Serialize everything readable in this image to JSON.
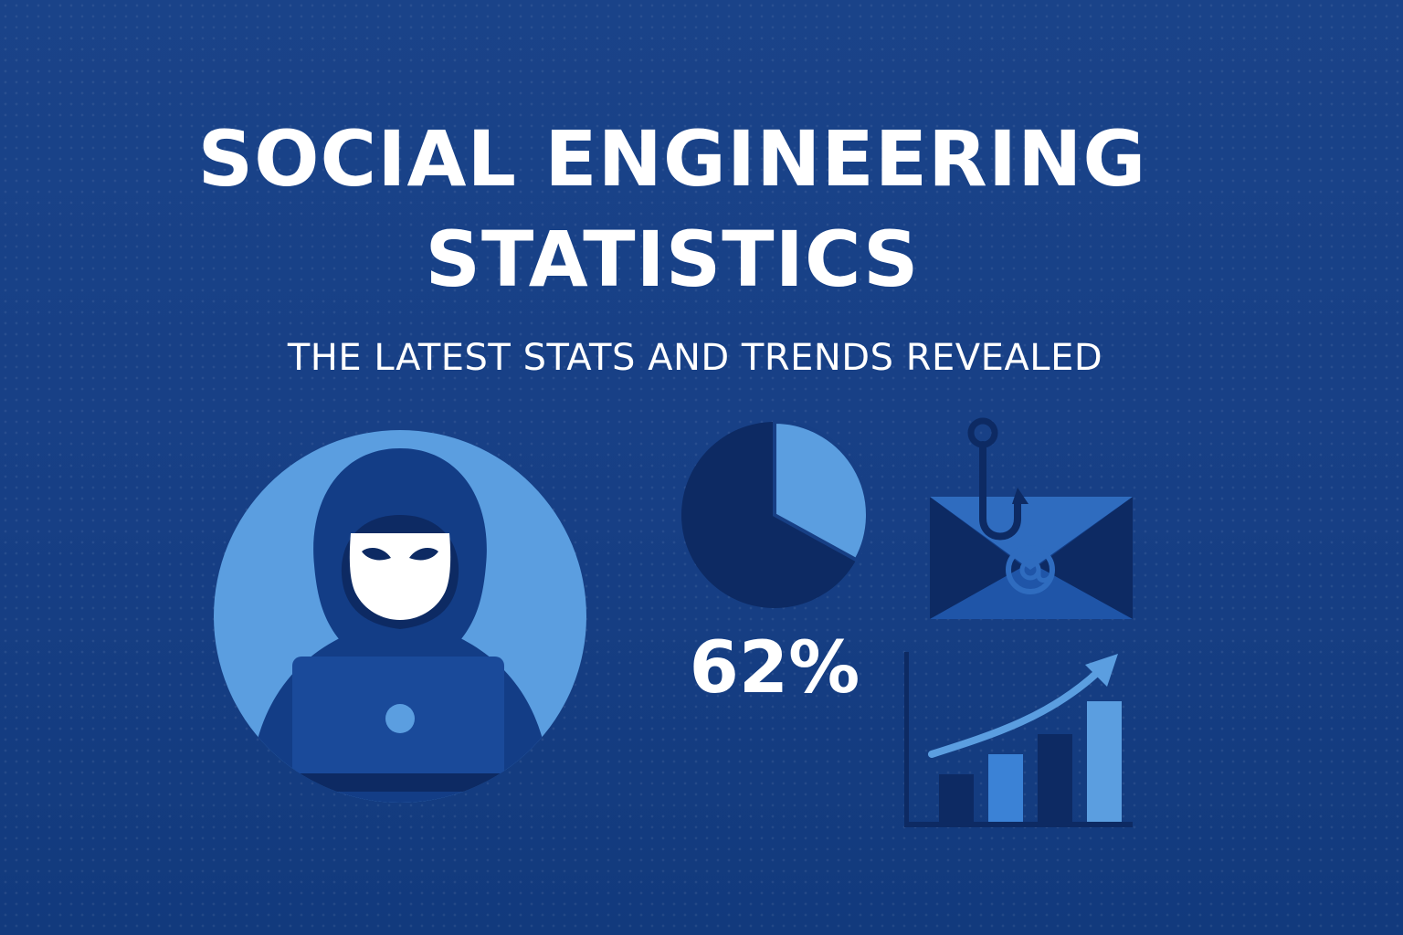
{
  "header": {
    "title_line_1": "SOCIAL ENGINEERING",
    "title_line_2": "STATISTICS",
    "subtitle": "THE LATEST STATS AND TRENDS REVEALED"
  },
  "stat": {
    "value": "62%",
    "pie_highlight_fraction": 0.33
  },
  "icons": [
    "hooded-hacker-icon",
    "laptop-icon",
    "pie-chart-icon",
    "phishing-email-icon",
    "fish-hook-icon",
    "at-sign-icon",
    "growth-bar-chart-icon",
    "trend-arrow-icon"
  ],
  "colors": {
    "background": "#173f85",
    "text": "#ffffff",
    "light_blue": "#5b9ee0",
    "navy": "#0d2a63",
    "mid_blue": "#2f6cbf"
  }
}
